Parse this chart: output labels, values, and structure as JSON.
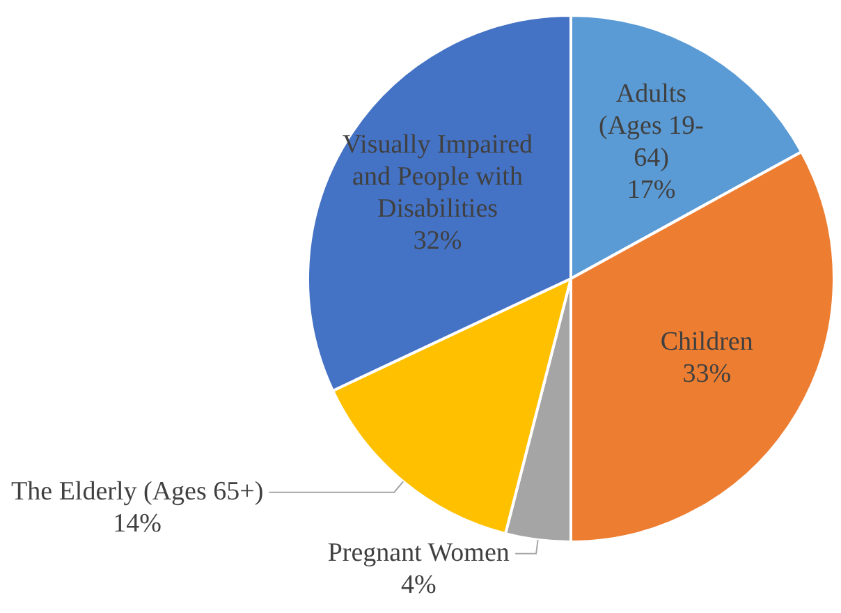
{
  "chart_data": {
    "type": "pie",
    "categories": [
      "Adults (Ages 19-64)",
      "Children",
      "Pregnant Women",
      "The Elderly (Ages 65+)",
      "Visually Impaired and People with Disabilities"
    ],
    "values": [
      17,
      33,
      4,
      14,
      32
    ],
    "value_labels": [
      "17%",
      "33%",
      "4%",
      "14%",
      "32%"
    ],
    "colors": [
      "#5b9bd5",
      "#ed7d31",
      "#a5a5a5",
      "#ffc000",
      "#4472c4"
    ],
    "legend": false
  }
}
